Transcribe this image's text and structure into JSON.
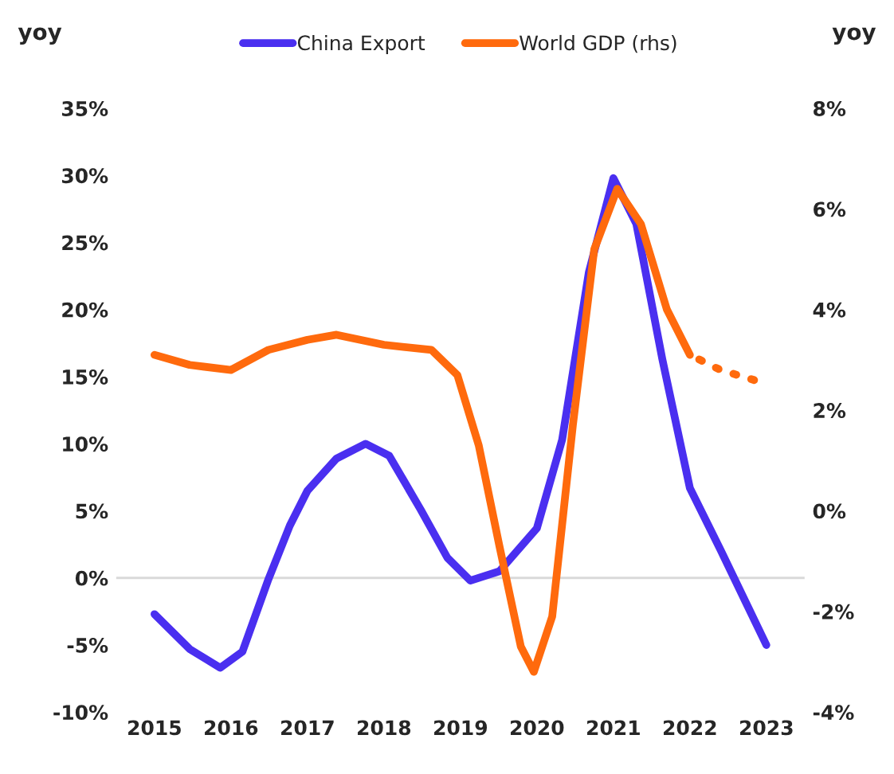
{
  "chart_data": {
    "type": "line",
    "ylabel": "yoy",
    "y2label": "yoy",
    "series": [
      {
        "name": "China Export",
        "color": "#4a2ff0",
        "x": [
          2015,
          2015.46,
          2015.86,
          2016.15,
          2016.49,
          2016.77,
          2017,
          2017.38,
          2017.76,
          2018.07,
          2018.48,
          2018.83,
          2019.13,
          2019.51,
          2020,
          2020.33,
          2020.68,
          2021,
          2021.3,
          2021.64,
          2022,
          2022.4,
          2023
        ],
        "values": [
          -2.7,
          -5.3,
          -6.7,
          -5.5,
          -0.1,
          3.9,
          6.5,
          8.9,
          10.0,
          9.1,
          5.1,
          1.5,
          -0.2,
          0.5,
          3.7,
          10.3,
          22.8,
          29.8,
          26.4,
          16.3,
          6.7,
          2.1,
          -5.0
        ]
      },
      {
        "name": "World GDP (rhs)",
        "color": "#ff6a0d",
        "axis": "y2",
        "x": [
          2015,
          2015.46,
          2016,
          2016.49,
          2017,
          2017.38,
          2018,
          2018.62,
          2018.96,
          2019.24,
          2019.51,
          2019.79,
          2019.96,
          2020.2,
          2020.47,
          2020.75,
          2021.05,
          2021.36,
          2021.7,
          2022
        ],
        "values": [
          3.1,
          2.9,
          2.8,
          3.2,
          3.4,
          3.5,
          3.3,
          3.2,
          2.7,
          1.3,
          -0.7,
          -2.7,
          -3.2,
          -2.1,
          1.7,
          5.2,
          6.4,
          5.7,
          4.0,
          3.1
        ]
      },
      {
        "color": "#ff6a0d",
        "axis": "y2",
        "line_style": "dotted",
        "x": [
          2022,
          2022.4,
          2022.84
        ],
        "values": [
          3.1,
          2.8,
          2.6
        ]
      }
    ],
    "xlim": [
      2014.5,
      2023.5
    ],
    "xticks": [
      2015,
      2016,
      2017,
      2018,
      2019,
      2020,
      2021,
      2022,
      2023
    ],
    "ylim": [
      -10,
      35
    ],
    "yticks": [
      {
        "value": -10,
        "label": "-10%"
      },
      {
        "value": -5,
        "label": "-5%"
      },
      {
        "value": 0,
        "label": "0%"
      },
      {
        "value": 5,
        "label": "5%"
      },
      {
        "value": 10,
        "label": "10%"
      },
      {
        "value": 15,
        "label": "15%"
      },
      {
        "value": 20,
        "label": "20%"
      },
      {
        "value": 25,
        "label": "25%"
      },
      {
        "value": 30,
        "label": "30%"
      },
      {
        "value": 35,
        "label": "35%"
      }
    ],
    "y2lim": [
      -4,
      8
    ],
    "y2ticks": [
      {
        "value": -4,
        "label": "-4%"
      },
      {
        "value": -2,
        "label": "-2%"
      },
      {
        "value": 0,
        "label": "0%"
      },
      {
        "value": 2,
        "label": "2%"
      },
      {
        "value": 4,
        "label": "4%"
      },
      {
        "value": 6,
        "label": "6%"
      },
      {
        "value": 8,
        "label": "8%"
      }
    ],
    "ref_lines": [
      {
        "axis": "y",
        "value": 0,
        "color": "#d9d9d9"
      }
    ],
    "legend": "top"
  }
}
